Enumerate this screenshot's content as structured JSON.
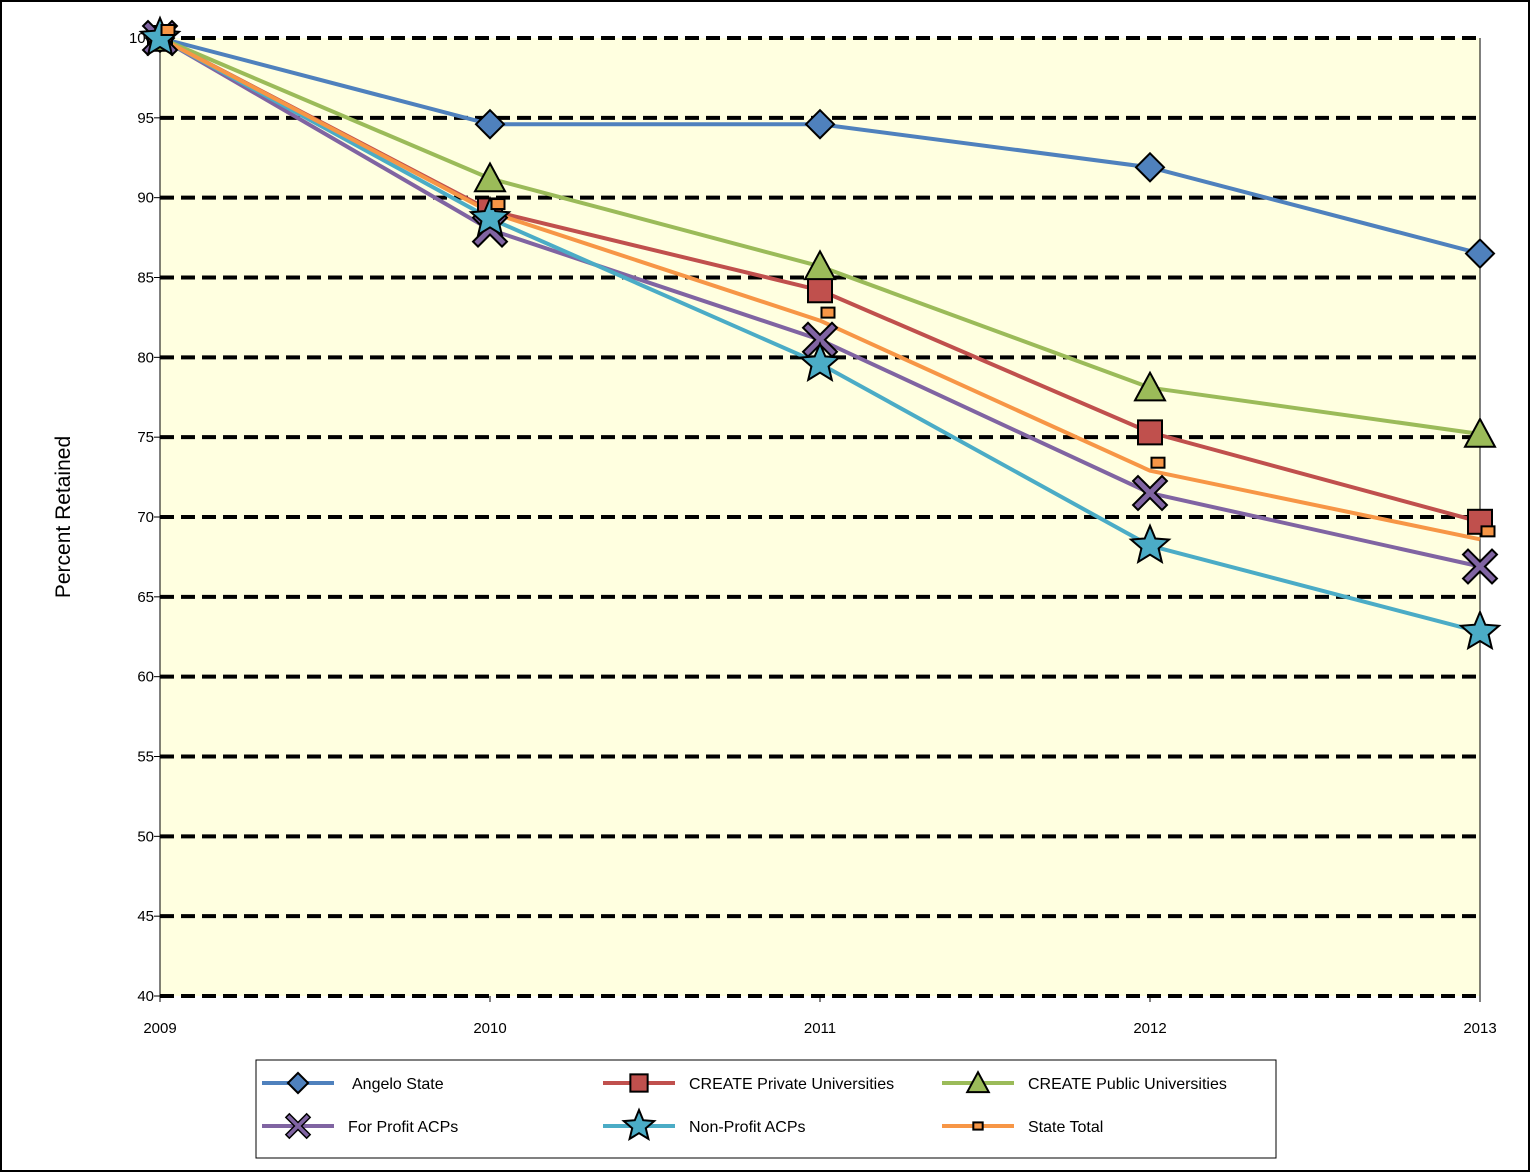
{
  "chart_data": {
    "type": "line",
    "title": "",
    "xlabel": "",
    "ylabel": "Percent Retained",
    "x": [
      "2009",
      "2010",
      "2011",
      "2012",
      "2013"
    ],
    "ylim": [
      40,
      100
    ],
    "yticks": [
      "40",
      "45",
      "50",
      "55",
      "60",
      "65",
      "70",
      "75",
      "80",
      "85",
      "90",
      "95",
      "100"
    ],
    "grid": "horizontal dashed",
    "legend_position": "bottom",
    "background_color": "#FFFFE0",
    "series": [
      {
        "name": "Angelo State",
        "values": [
          100,
          94.6,
          94.6,
          91.9,
          86.5
        ],
        "color": "#4F81BD",
        "marker": "diamond"
      },
      {
        "name": "CREATE Private Universities",
        "values": [
          100,
          89.2,
          84.2,
          75.3,
          69.7
        ],
        "color": "#C0504D",
        "marker": "square"
      },
      {
        "name": "CREATE Public Universities",
        "values": [
          100,
          91.2,
          85.7,
          78.1,
          75.2
        ],
        "color": "#9BBB59",
        "marker": "triangle"
      },
      {
        "name": "For Profit ACPs",
        "values": [
          100,
          88.0,
          81.1,
          71.5,
          66.9
        ],
        "color": "#8064A2",
        "marker": "x"
      },
      {
        "name": "Non-Profit ACPs",
        "values": [
          100,
          88.7,
          79.6,
          68.2,
          62.8
        ],
        "color": "#4BACC6",
        "marker": "star"
      },
      {
        "name": "State Total",
        "values": [
          100,
          89.1,
          82.3,
          72.9,
          68.6
        ],
        "color": "#F79646",
        "marker": "small-square"
      }
    ]
  }
}
